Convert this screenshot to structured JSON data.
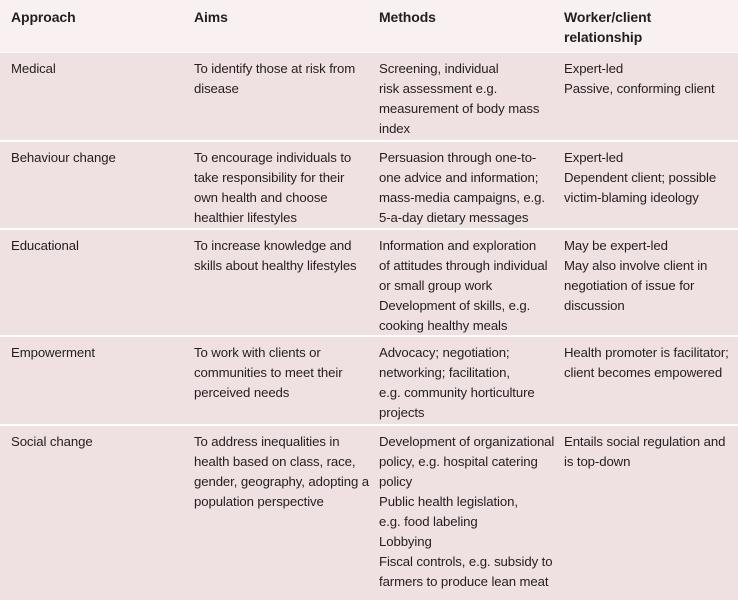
{
  "headers": {
    "approach": "Approach",
    "aims": "Aims",
    "methods": "Methods",
    "relationship_line1": "Worker/client",
    "relationship_line2": "relationship"
  },
  "rows": [
    {
      "approach": [
        "Medical"
      ],
      "aims": [
        "To identify those at risk from",
        "disease"
      ],
      "methods": [
        "Screening, individual",
        "risk assessment e.g.",
        "measurement of body mass",
        "index"
      ],
      "relationship": [
        "Expert-led",
        "Passive, conforming client"
      ]
    },
    {
      "approach": [
        "Behaviour change"
      ],
      "aims": [
        "To encourage individuals to",
        "take responsibility for their",
        "own health and choose",
        "healthier lifestyles"
      ],
      "methods": [
        "Persuasion through one-to-",
        "one advice and information;",
        "mass-media campaigns, e.g.",
        "5-a-day dietary messages"
      ],
      "relationship": [
        "Expert-led",
        "Dependent client; possible",
        "victim-blaming ideology"
      ]
    },
    {
      "approach": [
        "Educational"
      ],
      "aims": [
        "To increase knowledge and",
        "skills about healthy lifestyles"
      ],
      "methods": [
        "Information and exploration",
        "of attitudes through individual",
        "or small group work",
        "Development of skills, e.g.",
        "cooking healthy meals"
      ],
      "relationship": [
        "May be expert-led",
        "May also involve client in",
        "negotiation of issue for",
        "discussion"
      ]
    },
    {
      "approach": [
        "Empowerment"
      ],
      "aims": [
        "To work with clients or",
        "communities to meet their",
        "perceived needs"
      ],
      "methods": [
        "Advocacy; negotiation;",
        "networking; facilitation,",
        "e.g. community horticulture",
        "projects"
      ],
      "relationship": [
        "Health promoter is facilitator;",
        "client becomes empowered"
      ]
    },
    {
      "approach": [
        "Social change"
      ],
      "aims": [
        "To address inequalities in",
        "health based on class, race,",
        "gender, geography, adopting a",
        "population perspective"
      ],
      "methods": [
        "Development of organizational",
        "policy, e.g. hospital catering",
        "policy",
        "Public health legislation,",
        "e.g. food labeling",
        "Lobbying",
        "Fiscal controls, e.g. subsidy to",
        "farmers to produce lean meat"
      ],
      "relationship": [
        "Entails social regulation and",
        "is top-down"
      ]
    }
  ]
}
